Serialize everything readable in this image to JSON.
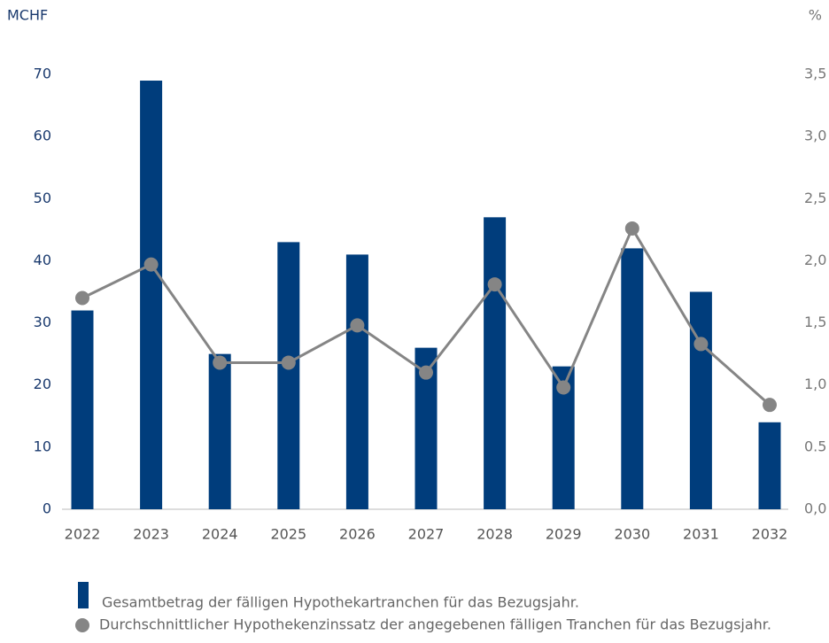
{
  "chart_data": {
    "type": "bar_line",
    "y_label": "MCHF",
    "y2_label": "%",
    "categories": [
      "2022",
      "2023",
      "2024",
      "2025",
      "2026",
      "2027",
      "2028",
      "2029",
      "2030",
      "2031",
      "2032"
    ],
    "series": [
      {
        "name": "Gesamtbetrag der fälligen Hypothekartranchen für das Bezugsjahr.",
        "color": "#003d7c",
        "type": "bar",
        "values": [
          32,
          69,
          25,
          43,
          41,
          26,
          47,
          23,
          42,
          35,
          14
        ]
      },
      {
        "name": "Durchschnittlicher Hypothekenzinssatz der angegebenen fälligen Tranchen für das Bezugsjahr.",
        "color": "#858585",
        "type": "line",
        "axis": "y2",
        "values": [
          1.7,
          1.97,
          1.18,
          1.18,
          1.48,
          1.1,
          1.81,
          0.98,
          2.26,
          1.33,
          0.84
        ]
      }
    ],
    "ylim": [
      0,
      70
    ],
    "yticks": [
      0,
      10,
      20,
      30,
      40,
      50,
      60,
      70
    ],
    "y2lim": [
      0,
      3.5
    ],
    "y2ticks": [
      {
        "value": 0,
        "label": "0,0"
      },
      {
        "value": 0.5,
        "label": "0.5"
      },
      {
        "value": 1,
        "label": "1,0"
      },
      {
        "value": 1.5,
        "label": "1,5"
      },
      {
        "value": 2,
        "label": "2,0"
      },
      {
        "value": 2.5,
        "label": "2,5"
      },
      {
        "value": 3,
        "label": "3,0"
      },
      {
        "value": 3.5,
        "label": "3,5"
      }
    ]
  }
}
